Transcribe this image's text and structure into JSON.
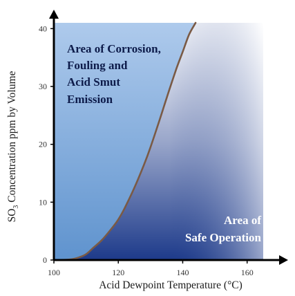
{
  "chart_data": {
    "type": "area",
    "title": "",
    "xlabel": "Acid Dewpoint Temperature (°C)",
    "ylabel_prefix": "SO",
    "ylabel_subscript": "3",
    "ylabel_suffix": " Concentration ppm by Volume",
    "xlim": [
      100,
      165
    ],
    "ylim": [
      0,
      41
    ],
    "x_ticks": [
      100,
      120,
      140,
      160
    ],
    "y_ticks": [
      0,
      10,
      20,
      30,
      40
    ],
    "grid": false,
    "series": [
      {
        "x": [
          100,
          105,
          108,
          110,
          112,
          115,
          118,
          120,
          122,
          125,
          128,
          130,
          133,
          135,
          138,
          140,
          142,
          144
        ],
        "y": [
          0,
          0.1,
          0.5,
          1,
          2,
          3.5,
          5.5,
          7,
          9,
          12.5,
          16.5,
          19.5,
          24.5,
          28,
          33,
          36,
          39,
          41
        ]
      }
    ],
    "regions": {
      "upper_left": [
        "Area of Corrosion,",
        "Fouling and",
        "Acid Smut",
        "Emission"
      ],
      "lower_right": [
        "Area of",
        "Safe Operation"
      ]
    },
    "colors": {
      "corrosion_fill_top": "#aecaec",
      "corrosion_fill_bottom": "#5f93ce",
      "safe_fill_dark": "#1d3a8a",
      "safe_fill_light": "#ffffff",
      "curve": "#7a5a45",
      "corrosion_text": "#0d1b4a",
      "safe_text": "#ffffff"
    }
  }
}
